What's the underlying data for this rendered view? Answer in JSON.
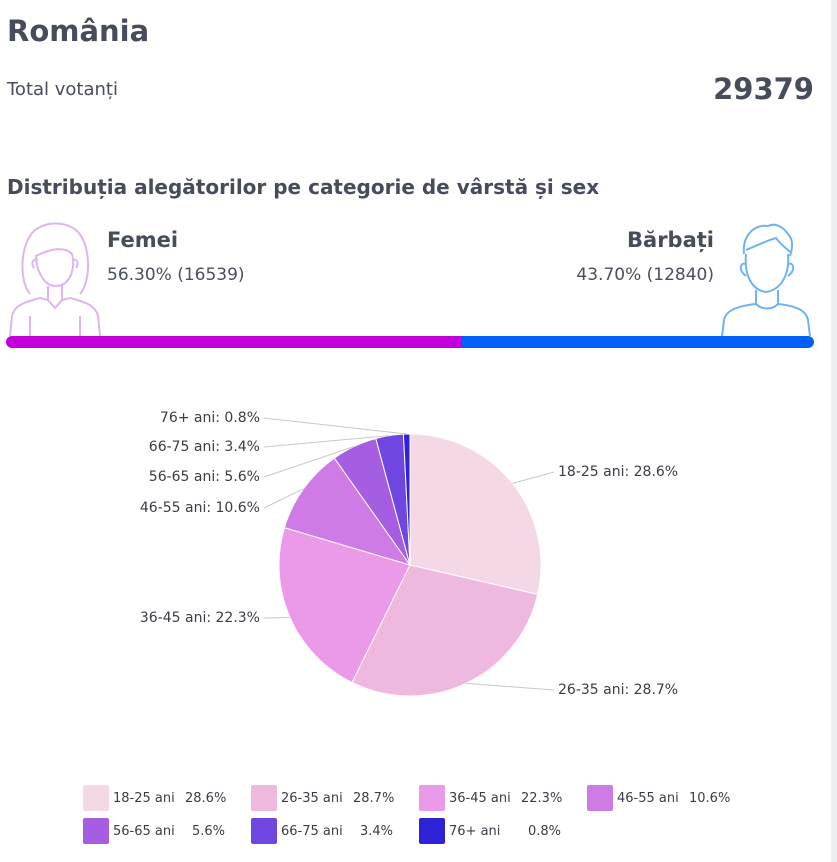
{
  "header": {
    "title": "România",
    "total_label": "Total votanți",
    "total_value": "29379"
  },
  "section": {
    "title": "Distribuția alegătorilor pe categorie de vârstă și sex"
  },
  "gender": {
    "female": {
      "name": "Femei",
      "stat": "56.30% (16539)",
      "share": 56.3,
      "color": "#c300d9",
      "avatar_icon": "woman-avatar-icon",
      "avatar_color": "#dcb5f2"
    },
    "male": {
      "name": "Bărbați",
      "stat": "43.70% (12840)",
      "share": 43.7,
      "color": "#005ff7",
      "avatar_icon": "man-avatar-icon",
      "avatar_color": "#6fb3f2"
    }
  },
  "chart_data": {
    "type": "pie",
    "categories": [
      "18-25 ani",
      "26-35 ani",
      "36-45 ani",
      "46-55 ani",
      "56-65 ani",
      "66-75 ani",
      "76+ ani"
    ],
    "values": [
      28.6,
      28.7,
      22.3,
      10.6,
      5.6,
      3.4,
      0.8
    ],
    "slice_labels": [
      "18-25 ani: 28.6%",
      "26-35 ani: 28.7%",
      "36-45 ani: 22.3%",
      "46-55 ani: 10.6%",
      "56-65 ani: 5.6%",
      "66-75 ani: 3.4%",
      "76+ ani: 0.8%"
    ],
    "colors": [
      "#f5d8e6",
      "#efb8df",
      "#ea9ae8",
      "#ce7be5",
      "#a55ee2",
      "#7046e3",
      "#2f23d7"
    ],
    "legend": [
      {
        "name": "18-25 ani",
        "pct": "28.6%"
      },
      {
        "name": "26-35 ani",
        "pct": "28.7%"
      },
      {
        "name": "36-45 ani",
        "pct": "22.3%"
      },
      {
        "name": "46-55 ani",
        "pct": "10.6%"
      },
      {
        "name": "56-65 ani",
        "pct": "5.6%"
      },
      {
        "name": "66-75 ani",
        "pct": "3.4%"
      },
      {
        "name": "76+ ani",
        "pct": "0.8%"
      }
    ],
    "legend_placement": "bottom"
  }
}
